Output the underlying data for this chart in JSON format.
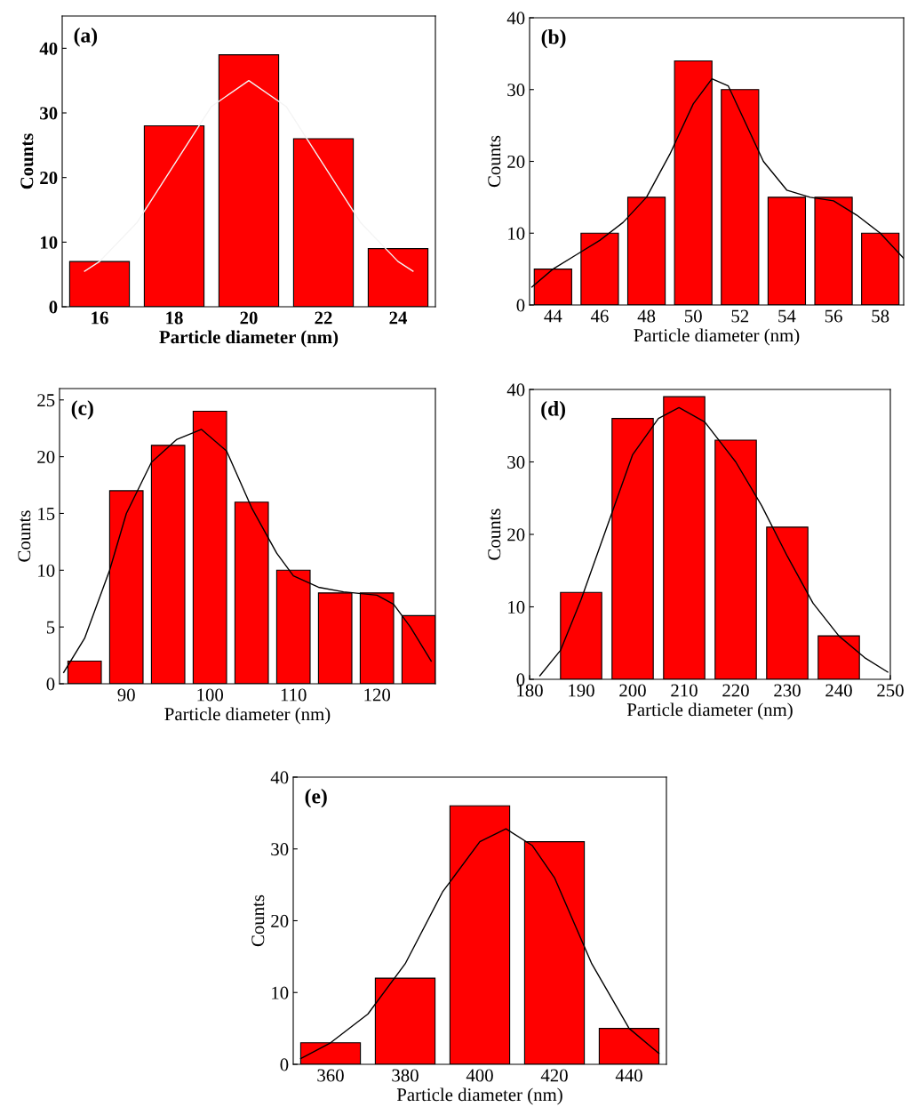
{
  "chart_data": [
    {
      "type": "bar",
      "title": "(a)",
      "xlabel": "Particle diameter (nm)",
      "ylabel": "Counts",
      "xlim": [
        15,
        25
      ],
      "ylim": [
        0,
        45
      ],
      "xticks": [
        16,
        18,
        20,
        22,
        24
      ],
      "yticks": [
        0,
        10,
        20,
        30,
        40
      ],
      "legend": false,
      "grid": false,
      "series": [
        {
          "color": "#ff0000",
          "x": [
            16,
            18,
            20,
            22,
            24
          ],
          "values": [
            7,
            28,
            39,
            26,
            9
          ]
        },
        {
          "type": "line",
          "color": "#f4f4f4",
          "x": [
            15.6,
            16,
            17,
            18,
            19,
            20,
            21,
            22,
            23,
            24,
            24.4
          ],
          "values": [
            5.5,
            7,
            13,
            22,
            31,
            35,
            31,
            22,
            13,
            7,
            5.5
          ]
        }
      ]
    },
    {
      "type": "bar",
      "title": "(b)",
      "xlabel": "Particle diameter (nm)",
      "ylabel": "Counts",
      "xlim": [
        43,
        59
      ],
      "ylim": [
        0,
        40
      ],
      "xticks": [
        44,
        46,
        48,
        50,
        52,
        54,
        56,
        58
      ],
      "yticks": [
        0,
        10,
        20,
        30,
        40
      ],
      "legend": false,
      "grid": false,
      "series": [
        {
          "color": "#ff0000",
          "x": [
            44,
            46,
            48,
            50,
            52,
            54,
            56,
            58
          ],
          "values": [
            5,
            10,
            15,
            34,
            30,
            15,
            15,
            10
          ]
        },
        {
          "type": "line",
          "color": "#000000",
          "x": [
            43.1,
            44,
            45,
            46,
            47,
            48,
            49,
            50,
            50.8,
            51.5,
            52,
            53,
            54,
            55,
            56,
            57,
            58,
            59
          ],
          "values": [
            2.5,
            5,
            7,
            9,
            11.5,
            15,
            21,
            28,
            31.5,
            30.5,
            27,
            20,
            16,
            15,
            14.5,
            12.5,
            10,
            6.5
          ]
        }
      ]
    },
    {
      "type": "bar",
      "title": "(c)",
      "xlabel": "Particle diameter (nm)",
      "ylabel": "Counts",
      "xlim": [
        82,
        127
      ],
      "ylim": [
        0,
        26
      ],
      "xticks": [
        90,
        100,
        110,
        120
      ],
      "yticks": [
        0,
        5,
        10,
        15,
        20,
        25
      ],
      "legend": false,
      "grid": false,
      "series": [
        {
          "color": "#ff0000",
          "x": [
            85,
            90,
            95,
            100,
            105,
            110,
            115,
            120,
            125
          ],
          "values": [
            2,
            17,
            21,
            24,
            16,
            10,
            8,
            8,
            6
          ]
        },
        {
          "type": "line",
          "color": "#000000",
          "x": [
            82.5,
            85,
            88,
            90,
            93,
            96,
            99,
            102,
            105,
            108,
            110,
            113,
            116,
            120,
            122,
            124,
            126.5
          ],
          "values": [
            1,
            4,
            10,
            15,
            19.5,
            21.5,
            22.4,
            20.5,
            15.5,
            11.5,
            9.5,
            8.5,
            8.1,
            7.8,
            7,
            5,
            2
          ]
        }
      ]
    },
    {
      "type": "bar",
      "title": "(d)",
      "xlabel": "Particle diameter (nm)",
      "ylabel": "Counts",
      "xlim": [
        180,
        250
      ],
      "ylim": [
        0,
        40
      ],
      "xticks": [
        180,
        190,
        200,
        210,
        220,
        230,
        240,
        250
      ],
      "yticks": [
        0,
        10,
        20,
        30,
        40
      ],
      "legend": false,
      "grid": false,
      "series": [
        {
          "color": "#ff0000",
          "x": [
            190,
            200,
            210,
            220,
            230,
            240
          ],
          "values": [
            12,
            36,
            39,
            33,
            21,
            6
          ]
        },
        {
          "type": "line",
          "color": "#000000",
          "x": [
            182,
            186,
            190,
            195,
            200,
            205,
            209,
            214,
            220,
            225,
            230,
            235,
            240,
            245,
            249.5
          ],
          "values": [
            0.5,
            4,
            11,
            21,
            31,
            36,
            37.5,
            35.5,
            30,
            24,
            17,
            10.5,
            6,
            3,
            1
          ]
        }
      ]
    },
    {
      "type": "bar",
      "title": "(e)",
      "xlabel": "Particle diameter (nm)",
      "ylabel": "Counts",
      "xlim": [
        350,
        450
      ],
      "ylim": [
        0,
        40
      ],
      "xticks": [
        360,
        380,
        400,
        420,
        440
      ],
      "yticks": [
        0,
        10,
        20,
        30,
        40
      ],
      "legend": false,
      "grid": false,
      "series": [
        {
          "color": "#ff0000",
          "x": [
            360,
            380,
            400,
            420,
            440
          ],
          "values": [
            3,
            12,
            36,
            31,
            5
          ]
        },
        {
          "type": "line",
          "color": "#000000",
          "x": [
            352,
            360,
            370,
            380,
            390,
            400,
            407,
            414,
            420,
            430,
            440,
            448
          ],
          "values": [
            0.8,
            3,
            7,
            14,
            24,
            31,
            32.8,
            30.5,
            26,
            14,
            5,
            1.5
          ]
        }
      ]
    }
  ]
}
